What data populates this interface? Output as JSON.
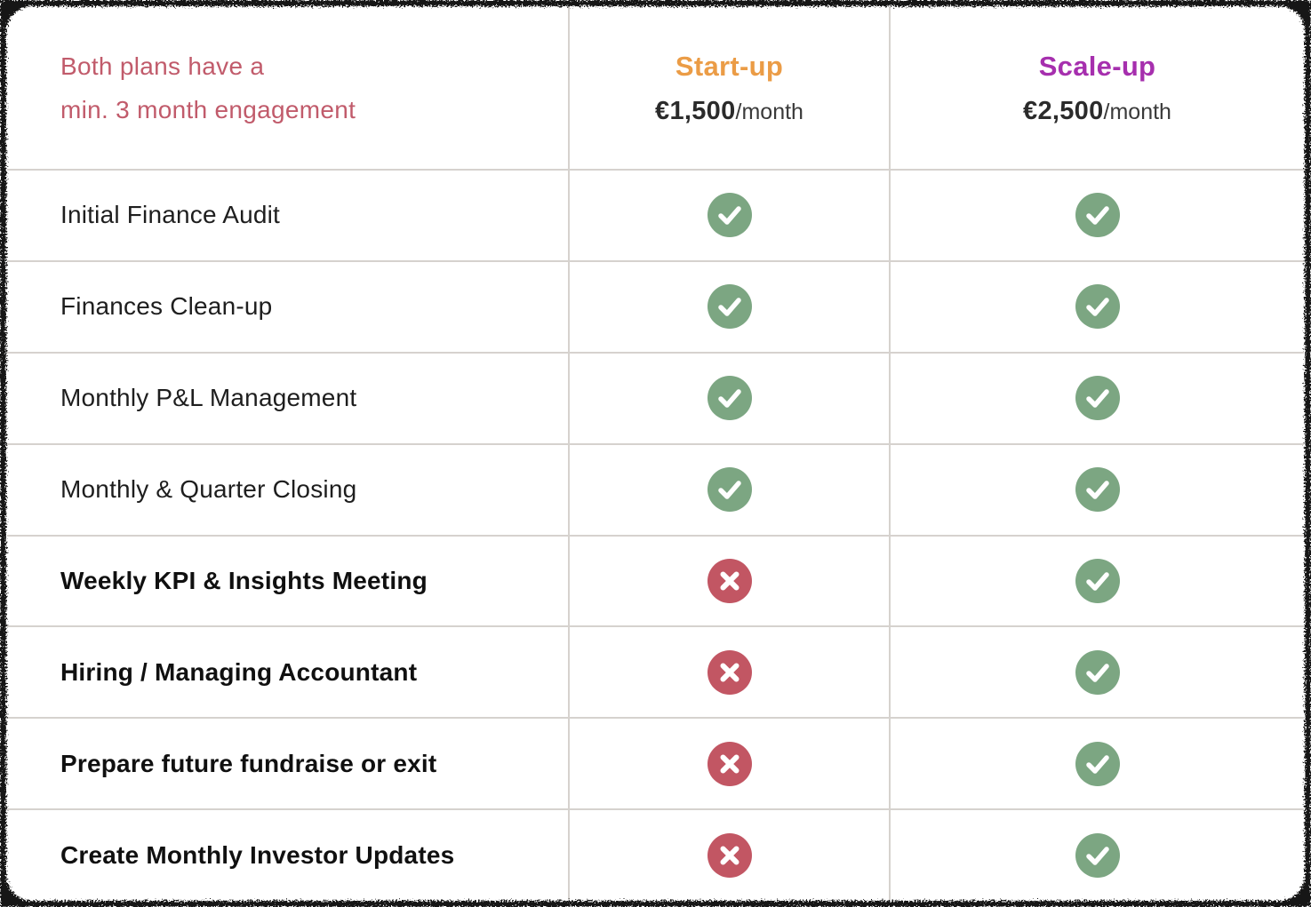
{
  "header": {
    "note_line1": "Both plans have a",
    "note_line2": "min. 3 month engagement"
  },
  "plans": [
    {
      "name": "Start-up",
      "price": "€1,500",
      "period": "/month",
      "accent": "#eb9c46"
    },
    {
      "name": "Scale-up",
      "price": "€2,500",
      "period": "/month",
      "accent": "#a62fae"
    }
  ],
  "features": [
    {
      "label": "Initial Finance Audit",
      "bold": false,
      "startup": "check",
      "scaleup": "check"
    },
    {
      "label": "Finances Clean-up",
      "bold": false,
      "startup": "check",
      "scaleup": "check"
    },
    {
      "label": "Monthly P&L Management",
      "bold": false,
      "startup": "check",
      "scaleup": "check"
    },
    {
      "label": "Monthly & Quarter Closing",
      "bold": false,
      "startup": "check",
      "scaleup": "check"
    },
    {
      "label": "Weekly KPI & Insights Meeting",
      "bold": true,
      "startup": "cross",
      "scaleup": "check"
    },
    {
      "label": "Hiring / Managing Accountant",
      "bold": true,
      "startup": "cross",
      "scaleup": "check"
    },
    {
      "label": "Prepare future fundraise or exit",
      "bold": true,
      "startup": "cross",
      "scaleup": "check"
    },
    {
      "label": "Create Monthly Investor Updates",
      "bold": true,
      "startup": "cross",
      "scaleup": "check"
    }
  ],
  "colors": {
    "note_text": "#c15b6b",
    "check_circle": "#7ca682",
    "cross_circle": "#c25663",
    "grid_line": "#d6d2ce"
  }
}
